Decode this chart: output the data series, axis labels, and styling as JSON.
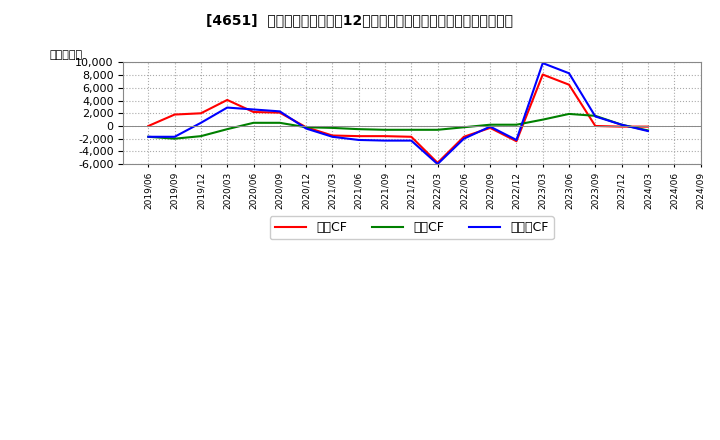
{
  "title": "[4651]  キャッシュフローの12か月移動合計の対前年同期増減額の推移",
  "ylabel": "（百万円）",
  "background_color": "#ffffff",
  "plot_bg_color": "#ffffff",
  "grid_color": "#aaaaaa",
  "ylim": [
    -6000,
    10000
  ],
  "yticks": [
    -6000,
    -4000,
    -2000,
    0,
    2000,
    4000,
    6000,
    8000,
    10000
  ],
  "dates": [
    "2019/06",
    "2019/09",
    "2019/12",
    "2020/03",
    "2020/06",
    "2020/09",
    "2020/12",
    "2021/03",
    "2021/06",
    "2021/09",
    "2021/12",
    "2022/03",
    "2022/06",
    "2022/09",
    "2022/12",
    "2023/03",
    "2023/06",
    "2023/09",
    "2023/12",
    "2024/03",
    "2024/06",
    "2024/09"
  ],
  "eigyo_cf": [
    0,
    1800,
    2000,
    4100,
    2200,
    2100,
    -200,
    -1500,
    -1600,
    -1600,
    -1700,
    -5800,
    -1700,
    -300,
    -2400,
    8100,
    6500,
    0,
    -100,
    -100,
    null,
    null
  ],
  "toshi_cf": [
    -1700,
    -2000,
    -1600,
    -500,
    500,
    500,
    -200,
    -300,
    -500,
    -600,
    -600,
    -600,
    -200,
    200,
    200,
    1000,
    1900,
    1600,
    200,
    -700,
    null,
    null
  ],
  "free_cf": [
    -1700,
    -1700,
    500,
    2900,
    2600,
    2300,
    -400,
    -1700,
    -2200,
    -2300,
    -2300,
    -6000,
    -2000,
    -100,
    -2200,
    9900,
    8300,
    1500,
    200,
    -800,
    null,
    null
  ],
  "legend_labels": [
    "営業CF",
    "投資CF",
    "フリーCF"
  ],
  "line_colors": [
    "#ff0000",
    "#008000",
    "#0000ff"
  ],
  "line_width": 1.5
}
